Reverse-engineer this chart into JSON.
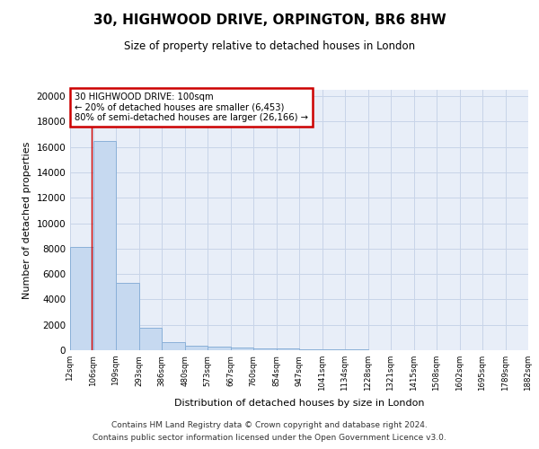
{
  "title": "30, HIGHWOOD DRIVE, ORPINGTON, BR6 8HW",
  "subtitle": "Size of property relative to detached houses in London",
  "xlabel": "Distribution of detached houses by size in London",
  "ylabel": "Number of detached properties",
  "bins": [
    12,
    106,
    199,
    293,
    386,
    480,
    573,
    667,
    760,
    854,
    947,
    1041,
    1134,
    1228,
    1321,
    1415,
    1508,
    1602,
    1695,
    1789,
    1882
  ],
  "bar_heights": [
    8100,
    16500,
    5300,
    1750,
    650,
    350,
    275,
    225,
    175,
    130,
    90,
    60,
    40,
    25,
    15,
    10,
    7,
    5,
    3,
    2
  ],
  "bar_color": "#c6d9f0",
  "bar_edge_color": "#8ab0d8",
  "annotation_text": "30 HIGHWOOD DRIVE: 100sqm\n← 20% of detached houses are smaller (6,453)\n80% of semi-detached houses are larger (26,166) →",
  "annotation_box_color": "#ffffff",
  "annotation_box_edge_color": "#cc0000",
  "vline_color": "#cc0000",
  "vline_x": 100,
  "ylim": [
    0,
    20500
  ],
  "yticks": [
    0,
    2000,
    4000,
    6000,
    8000,
    10000,
    12000,
    14000,
    16000,
    18000,
    20000
  ],
  "grid_color": "#c8d4e8",
  "bg_color": "#e8eef8",
  "footer1": "Contains HM Land Registry data © Crown copyright and database right 2024.",
  "footer2": "Contains public sector information licensed under the Open Government Licence v3.0."
}
